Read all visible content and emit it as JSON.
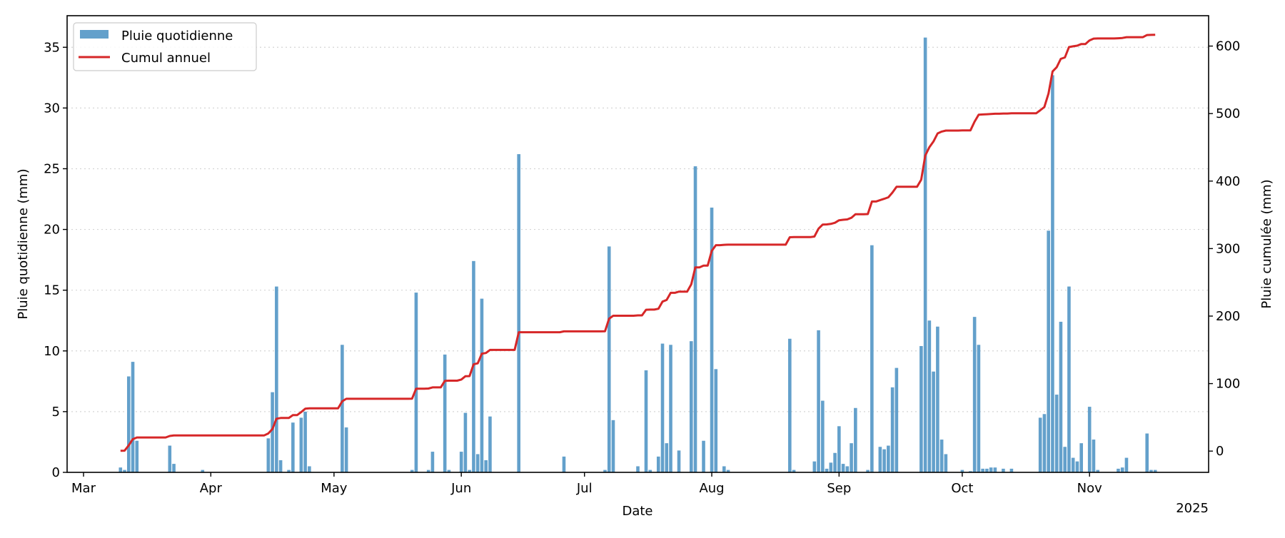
{
  "chart_data": {
    "type": "bar+line",
    "xlabel": "Date",
    "ylabel_left": "Pluie quotidienne (mm)",
    "ylabel_right": "Pluie cumulée (mm)",
    "year_label": "2025",
    "xlim": [
      "2025-02-25",
      "2025-11-30"
    ],
    "ylim_left": [
      0,
      37.6
    ],
    "ylim_right": [
      -31.5,
      645
    ],
    "yticks_left": [
      0,
      5,
      10,
      15,
      20,
      25,
      30,
      35
    ],
    "yticks_right": [
      0,
      100,
      200,
      300,
      400,
      500,
      600
    ],
    "xticks": [
      {
        "date": "2025-03-01",
        "label": "Mar"
      },
      {
        "date": "2025-04-01",
        "label": "Apr"
      },
      {
        "date": "2025-05-01",
        "label": "May"
      },
      {
        "date": "2025-06-01",
        "label": "Jun"
      },
      {
        "date": "2025-07-01",
        "label": "Jul"
      },
      {
        "date": "2025-08-01",
        "label": "Aug"
      },
      {
        "date": "2025-09-01",
        "label": "Sep"
      },
      {
        "date": "2025-10-01",
        "label": "Oct"
      },
      {
        "date": "2025-11-01",
        "label": "Nov"
      }
    ],
    "grid": "horizontal dotted",
    "legend_position": "top-left",
    "colors": {
      "bars": "#63a0cb",
      "line": "#d62728"
    },
    "series": [
      {
        "name": "Pluie quotidienne",
        "type": "bar",
        "axis": "left",
        "points": [
          [
            "2025-03-10",
            0.4
          ],
          [
            "2025-03-11",
            0.2
          ],
          [
            "2025-03-12",
            7.9
          ],
          [
            "2025-03-13",
            9.1
          ],
          [
            "2025-03-14",
            2.6
          ],
          [
            "2025-03-22",
            2.2
          ],
          [
            "2025-03-23",
            0.7
          ],
          [
            "2025-03-30",
            0.2
          ],
          [
            "2025-04-15",
            2.8
          ],
          [
            "2025-04-16",
            6.6
          ],
          [
            "2025-04-17",
            15.3
          ],
          [
            "2025-04-18",
            1.0
          ],
          [
            "2025-04-20",
            0.2
          ],
          [
            "2025-04-21",
            4.1
          ],
          [
            "2025-04-23",
            4.5
          ],
          [
            "2025-04-24",
            5.0
          ],
          [
            "2025-04-25",
            0.5
          ],
          [
            "2025-05-03",
            10.5
          ],
          [
            "2025-05-04",
            3.7
          ],
          [
            "2025-05-20",
            0.2
          ],
          [
            "2025-05-21",
            14.8
          ],
          [
            "2025-05-24",
            0.2
          ],
          [
            "2025-05-25",
            1.7
          ],
          [
            "2025-05-28",
            9.7
          ],
          [
            "2025-05-29",
            0.2
          ],
          [
            "2025-06-01",
            1.7
          ],
          [
            "2025-06-02",
            4.9
          ],
          [
            "2025-06-03",
            0.2
          ],
          [
            "2025-06-04",
            17.4
          ],
          [
            "2025-06-05",
            1.5
          ],
          [
            "2025-06-06",
            14.3
          ],
          [
            "2025-06-07",
            1.0
          ],
          [
            "2025-06-08",
            4.6
          ],
          [
            "2025-06-15",
            26.2
          ],
          [
            "2025-06-26",
            1.3
          ],
          [
            "2025-07-06",
            0.2
          ],
          [
            "2025-07-07",
            18.6
          ],
          [
            "2025-07-08",
            4.3
          ],
          [
            "2025-07-14",
            0.5
          ],
          [
            "2025-07-16",
            8.4
          ],
          [
            "2025-07-17",
            0.2
          ],
          [
            "2025-07-19",
            1.3
          ],
          [
            "2025-07-20",
            10.6
          ],
          [
            "2025-07-21",
            2.4
          ],
          [
            "2025-07-22",
            10.5
          ],
          [
            "2025-07-24",
            1.8
          ],
          [
            "2025-07-27",
            10.8
          ],
          [
            "2025-07-28",
            25.2
          ],
          [
            "2025-07-30",
            2.6
          ],
          [
            "2025-08-01",
            21.8
          ],
          [
            "2025-08-02",
            8.5
          ],
          [
            "2025-08-04",
            0.5
          ],
          [
            "2025-08-05",
            0.2
          ],
          [
            "2025-08-20",
            11.0
          ],
          [
            "2025-08-21",
            0.2
          ],
          [
            "2025-08-26",
            0.9
          ],
          [
            "2025-08-27",
            11.7
          ],
          [
            "2025-08-28",
            5.9
          ],
          [
            "2025-08-29",
            0.3
          ],
          [
            "2025-08-30",
            0.8
          ],
          [
            "2025-08-31",
            1.6
          ],
          [
            "2025-09-01",
            3.8
          ],
          [
            "2025-09-02",
            0.7
          ],
          [
            "2025-09-03",
            0.5
          ],
          [
            "2025-09-04",
            2.4
          ],
          [
            "2025-09-05",
            5.3
          ],
          [
            "2025-09-08",
            0.2
          ],
          [
            "2025-09-09",
            18.7
          ],
          [
            "2025-09-11",
            2.1
          ],
          [
            "2025-09-12",
            1.9
          ],
          [
            "2025-09-13",
            2.2
          ],
          [
            "2025-09-14",
            7.0
          ],
          [
            "2025-09-15",
            8.6
          ],
          [
            "2025-09-21",
            10.4
          ],
          [
            "2025-09-22",
            35.8
          ],
          [
            "2025-09-23",
            12.5
          ],
          [
            "2025-09-24",
            8.3
          ],
          [
            "2025-09-25",
            12.0
          ],
          [
            "2025-09-26",
            2.7
          ],
          [
            "2025-09-27",
            1.5
          ],
          [
            "2025-10-01",
            0.2
          ],
          [
            "2025-10-03",
            0.1
          ],
          [
            "2025-10-04",
            12.8
          ],
          [
            "2025-10-05",
            10.5
          ],
          [
            "2025-10-06",
            0.3
          ],
          [
            "2025-10-07",
            0.3
          ],
          [
            "2025-10-08",
            0.4
          ],
          [
            "2025-10-09",
            0.4
          ],
          [
            "2025-10-11",
            0.3
          ],
          [
            "2025-10-13",
            0.3
          ],
          [
            "2025-10-20",
            4.5
          ],
          [
            "2025-10-21",
            4.8
          ],
          [
            "2025-10-22",
            19.9
          ],
          [
            "2025-10-23",
            32.7
          ],
          [
            "2025-10-24",
            6.4
          ],
          [
            "2025-10-25",
            12.4
          ],
          [
            "2025-10-26",
            2.1
          ],
          [
            "2025-10-27",
            15.3
          ],
          [
            "2025-10-28",
            1.2
          ],
          [
            "2025-10-29",
            0.9
          ],
          [
            "2025-10-30",
            2.4
          ],
          [
            "2025-11-01",
            5.4
          ],
          [
            "2025-11-02",
            2.7
          ],
          [
            "2025-11-03",
            0.2
          ],
          [
            "2025-11-08",
            0.3
          ],
          [
            "2025-11-09",
            0.4
          ],
          [
            "2025-11-10",
            1.2
          ],
          [
            "2025-11-15",
            3.2
          ],
          [
            "2025-11-16",
            0.2
          ],
          [
            "2025-11-17",
            0.2
          ]
        ]
      },
      {
        "name": "Cumul annuel",
        "type": "line",
        "axis": "right",
        "definition": "running sum of Pluie quotidienne",
        "start": "2025-03-10",
        "end": "2025-11-17",
        "final_value": 616.8
      }
    ]
  }
}
